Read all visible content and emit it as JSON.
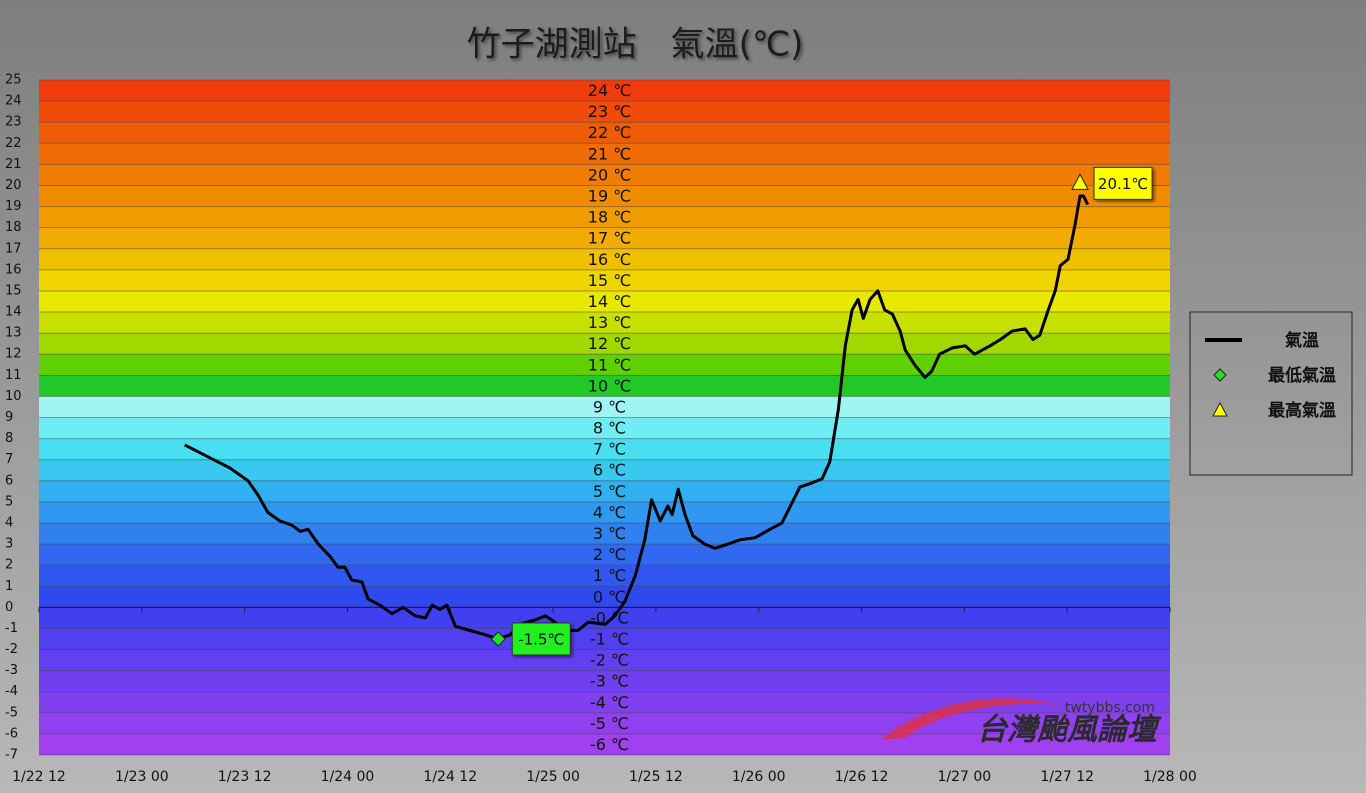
{
  "chart_data": {
    "type": "line",
    "title": "竹子湖測站　氣溫(℃)",
    "xlim": [
      12,
      144
    ],
    "ylim": [
      -7,
      25
    ],
    "xticks": [
      {
        "value": 12,
        "label": "1/22 12"
      },
      {
        "value": 24,
        "label": "1/23 00"
      },
      {
        "value": 36,
        "label": "1/23 12"
      },
      {
        "value": 48,
        "label": "1/24 00"
      },
      {
        "value": 60,
        "label": "1/24 12"
      },
      {
        "value": 72,
        "label": "1/25 00"
      },
      {
        "value": 84,
        "label": "1/25 12"
      },
      {
        "value": 96,
        "label": "1/26 00"
      },
      {
        "value": 108,
        "label": "1/26 12"
      },
      {
        "value": 120,
        "label": "1/27 00"
      },
      {
        "value": 132,
        "label": "1/27 12"
      },
      {
        "value": 144,
        "label": "1/28 00"
      }
    ],
    "yticks": [
      -7,
      -6,
      -5,
      -4,
      -3,
      -2,
      -1,
      0,
      1,
      2,
      3,
      4,
      5,
      6,
      7,
      8,
      9,
      10,
      11,
      12,
      13,
      14,
      15,
      16,
      17,
      18,
      19,
      20,
      21,
      22,
      23,
      24,
      25
    ],
    "grid": true,
    "bands": [
      {
        "from": 24,
        "to": 25,
        "color": "#f03c0c",
        "label": "24 ℃"
      },
      {
        "from": 23,
        "to": 24,
        "color": "#f04c08",
        "label": "23 ℃"
      },
      {
        "from": 22,
        "to": 23,
        "color": "#f05c06",
        "label": "22 ℃"
      },
      {
        "from": 21,
        "to": 22,
        "color": "#f06c04",
        "label": "21 ℃"
      },
      {
        "from": 20,
        "to": 21,
        "color": "#f07c02",
        "label": "20 ℃"
      },
      {
        "from": 19,
        "to": 20,
        "color": "#f08c00",
        "label": "19 ℃"
      },
      {
        "from": 18,
        "to": 19,
        "color": "#f09c00",
        "label": "18 ℃"
      },
      {
        "from": 17,
        "to": 18,
        "color": "#f0ac00",
        "label": "17 ℃"
      },
      {
        "from": 16,
        "to": 17,
        "color": "#f0c000",
        "label": "16 ℃"
      },
      {
        "from": 15,
        "to": 16,
        "color": "#f0d400",
        "label": "15 ℃"
      },
      {
        "from": 14,
        "to": 15,
        "color": "#e8e800",
        "label": "14 ℃"
      },
      {
        "from": 13,
        "to": 14,
        "color": "#c8e000",
        "label": "13 ℃"
      },
      {
        "from": 12,
        "to": 13,
        "color": "#a0d800",
        "label": "12 ℃"
      },
      {
        "from": 11,
        "to": 12,
        "color": "#60d000",
        "label": "11 ℃"
      },
      {
        "from": 10,
        "to": 11,
        "color": "#20c828",
        "label": "10 ℃"
      },
      {
        "from": 9,
        "to": 10,
        "color": "#a0f4f4",
        "label": "9 ℃"
      },
      {
        "from": 8,
        "to": 9,
        "color": "#70ecf4",
        "label": "8 ℃"
      },
      {
        "from": 7,
        "to": 8,
        "color": "#48e0f0",
        "label": "7 ℃"
      },
      {
        "from": 6,
        "to": 7,
        "color": "#38c8f0",
        "label": "6 ℃"
      },
      {
        "from": 5,
        "to": 6,
        "color": "#30b0f0",
        "label": "5 ℃"
      },
      {
        "from": 4,
        "to": 5,
        "color": "#3098f0",
        "label": "4 ℃"
      },
      {
        "from": 3,
        "to": 4,
        "color": "#3080f0",
        "label": "3 ℃"
      },
      {
        "from": 2,
        "to": 3,
        "color": "#3068f0",
        "label": "2 ℃"
      },
      {
        "from": 1,
        "to": 2,
        "color": "#3058f0",
        "label": "1 ℃"
      },
      {
        "from": 0,
        "to": 1,
        "color": "#3048f0",
        "label": "0 ℃"
      },
      {
        "from": -1,
        "to": 0,
        "color": "#4040f0",
        "label": "-0 ℃"
      },
      {
        "from": -2,
        "to": -1,
        "color": "#5040f0",
        "label": "-1 ℃"
      },
      {
        "from": -3,
        "to": -2,
        "color": "#6040f0",
        "label": "-2 ℃"
      },
      {
        "from": -4,
        "to": -3,
        "color": "#7040f0",
        "label": "-3 ℃"
      },
      {
        "from": -5,
        "to": -4,
        "color": "#8040f0",
        "label": "-4 ℃"
      },
      {
        "from": -6,
        "to": -5,
        "color": "#9040f0",
        "label": "-5 ℃"
      },
      {
        "from": -7,
        "to": -6,
        "color": "#a040f0",
        "label": "-6 ℃"
      }
    ],
    "series": [
      {
        "name": "氣溫",
        "type": "line",
        "color": "#000000",
        "x": [
          29.0,
          31.9,
          34.3,
          36.4,
          37.6,
          38.7,
          40.1,
          41.5,
          42.5,
          43.4,
          44.6,
          46.0,
          46.9,
          47.7,
          48.5,
          49.7,
          50.4,
          51.8,
          53.2,
          54.5,
          55.9,
          57.1,
          57.9,
          58.8,
          59.6,
          60.6,
          62.3,
          64.1,
          65.6,
          67.0,
          68.1,
          69.9,
          71.1,
          72.2,
          73.7,
          74.9,
          76.1,
          78.1,
          79.2,
          80.4,
          81.6,
          82.7,
          83.5,
          84.5,
          85.4,
          85.9,
          86.6,
          87.4,
          88.3,
          89.7,
          90.9,
          92.4,
          93.8,
          95.6,
          97.3,
          98.7,
          99.7,
          100.8,
          102.2,
          103.4,
          104.3,
          105.3,
          106.1,
          106.9,
          107.6,
          108.2,
          109.0,
          109.9,
          110.7,
          111.6,
          112.5,
          113.1,
          114.2,
          115.4,
          116.2,
          117.1,
          118.6,
          120.1,
          121.2,
          123.0,
          124.2,
          125.6,
          127.1,
          128.0,
          128.8,
          129.8,
          130.6,
          131.2,
          132.1,
          132.9,
          133.5,
          133.9,
          134.4
        ],
        "values": [
          7.7,
          7.1,
          6.6,
          6.0,
          5.3,
          4.5,
          4.1,
          3.9,
          3.6,
          3.7,
          3.0,
          2.4,
          1.9,
          1.9,
          1.3,
          1.2,
          0.4,
          0.1,
          -0.3,
          0.0,
          -0.4,
          -0.5,
          0.1,
          -0.1,
          0.1,
          -0.9,
          -1.1,
          -1.3,
          -1.5,
          -1.3,
          -0.8,
          -0.6,
          -0.4,
          -0.7,
          -1.1,
          -1.1,
          -0.7,
          -0.8,
          -0.4,
          0.3,
          1.5,
          3.2,
          5.1,
          4.1,
          4.8,
          4.4,
          5.6,
          4.4,
          3.4,
          3.0,
          2.8,
          3.0,
          3.2,
          3.3,
          3.7,
          4.0,
          4.8,
          5.7,
          5.9,
          6.1,
          6.9,
          9.4,
          12.4,
          14.1,
          14.6,
          13.7,
          14.6,
          15.0,
          14.1,
          13.9,
          13.1,
          12.2,
          11.5,
          10.9,
          11.2,
          12.0,
          12.3,
          12.4,
          12.0,
          12.4,
          12.7,
          13.1,
          13.2,
          12.7,
          12.9,
          14.1,
          15.0,
          16.2,
          16.5,
          18.1,
          19.5,
          19.5,
          19.1
        ]
      },
      {
        "name": "最低氣溫",
        "type": "scatter",
        "marker": "diamond",
        "color": "#22e022",
        "label_color": "#22ee22",
        "x": [
          65.6
        ],
        "values": [
          -1.5
        ],
        "value_labels": [
          "-1.5℃"
        ]
      },
      {
        "name": "最高氣溫",
        "type": "scatter",
        "marker": "triangle",
        "color": "#ffff00",
        "label_color": "#ffff00",
        "x": [
          133.5
        ],
        "values": [
          20.1
        ],
        "value_labels": [
          "20.1℃"
        ]
      }
    ],
    "watermark": {
      "site": "twtybbs.com",
      "name": "台灣颱風論壇"
    }
  }
}
